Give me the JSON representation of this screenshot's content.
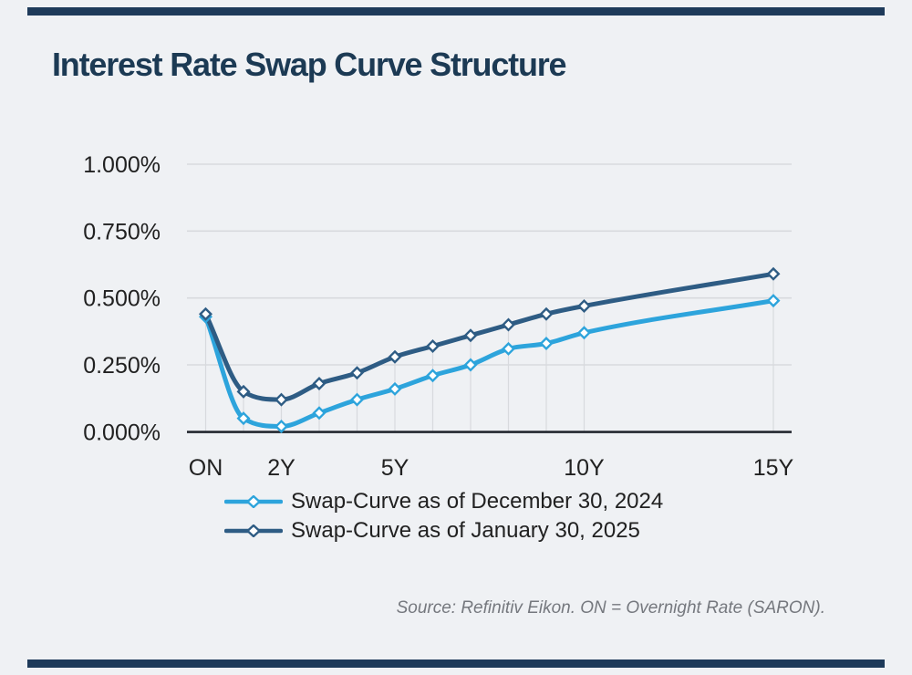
{
  "page": {
    "background_color": "#eff1f4"
  },
  "header": {
    "rule_color": "#1e3a5a",
    "title_color": "#1c3a54"
  },
  "chart_data": {
    "type": "line",
    "title": "Interest Rate Swap Curve Structure",
    "x_unit": "swap tenor",
    "tenors": [
      "ON",
      "1Y",
      "2Y",
      "3Y",
      "4Y",
      "5Y",
      "6Y",
      "7Y",
      "8Y",
      "9Y",
      "10Y",
      "15Y"
    ],
    "tenor_years": [
      0,
      1,
      2,
      3,
      4,
      5,
      6,
      7,
      8,
      9,
      10,
      15
    ],
    "x_tick_labels": [
      {
        "label": "ON",
        "years": 0
      },
      {
        "label": "2Y",
        "years": 2
      },
      {
        "label": "5Y",
        "years": 5
      },
      {
        "label": "10Y",
        "years": 10
      },
      {
        "label": "15Y",
        "years": 15
      }
    ],
    "y_axis": {
      "tick_labels": [
        "1.000%",
        "0.750%",
        "0.500%",
        "0.250%",
        "0.000%"
      ],
      "tick_values_pct": [
        1.0,
        0.75,
        0.5,
        0.25,
        0.0
      ],
      "min_pct": 0.0,
      "max_pct": 1.0
    },
    "ylim": [
      0.0,
      1.0
    ],
    "grid": "horizontal gridlines plus vertical drop lines at each data point",
    "legend_position": "below-left",
    "marker": "open-diamond",
    "series": [
      {
        "id": "dec-30-2024",
        "name": "Swap-Curve as of December 30, 2024",
        "color": "#2da4dc",
        "values_pct": [
          0.43,
          0.05,
          0.02,
          0.07,
          0.12,
          0.16,
          0.21,
          0.25,
          0.31,
          0.33,
          0.37,
          0.49
        ]
      },
      {
        "id": "jan-30-2025",
        "name": "Swap-Curve as of January 30, 2025",
        "color": "#2e5c84",
        "values_pct": [
          0.44,
          0.15,
          0.12,
          0.18,
          0.22,
          0.28,
          0.32,
          0.36,
          0.4,
          0.44,
          0.47,
          0.59
        ]
      }
    ],
    "axis_text_color": "#212121",
    "gridline_color": "#d8dade",
    "axis_line_color": "#23272f"
  },
  "source_note": {
    "text": "Source: Refinitiv Eikon. ON = Overnight Rate (SARON).",
    "color": "#75787e"
  }
}
